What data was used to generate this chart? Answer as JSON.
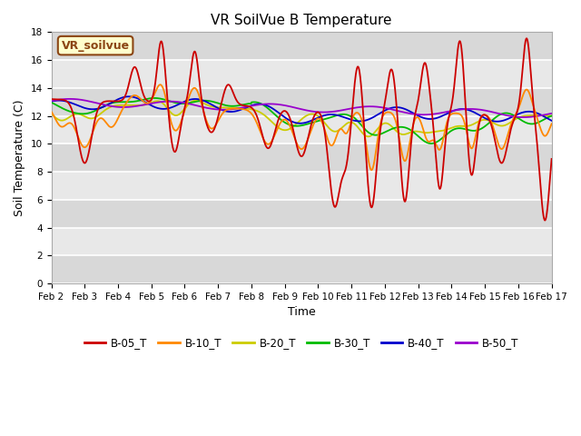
{
  "title": "VR SoilVue B Temperature",
  "xlabel": "Time",
  "ylabel": "Soil Temperature (C)",
  "ylim": [
    0,
    18
  ],
  "yticks": [
    0,
    2,
    4,
    6,
    8,
    10,
    12,
    14,
    16,
    18
  ],
  "background_color": "#ffffff",
  "plot_bg_color": "#d8d8d8",
  "stripe_color": "#e8e8e8",
  "series_colors": {
    "B-05_T": "#cc0000",
    "B-10_T": "#ff8800",
    "B-20_T": "#cccc00",
    "B-30_T": "#00bb00",
    "B-40_T": "#0000cc",
    "B-50_T": "#9900cc"
  },
  "x_labels": [
    "Feb 2",
    "Feb 3",
    "Feb 4",
    "Feb 5",
    "Feb 6",
    "Feb 7",
    "Feb 8",
    "Feb 9",
    "Feb 10",
    "Feb 11",
    "Feb 12",
    "Feb 13",
    "Feb 14",
    "Feb 15",
    "Feb 16",
    "Feb 17"
  ],
  "watermark_text": "VR_soilvue",
  "legend_entries": [
    "B-05_T",
    "B-10_T",
    "B-20_T",
    "B-30_T",
    "B-40_T",
    "B-50_T"
  ]
}
